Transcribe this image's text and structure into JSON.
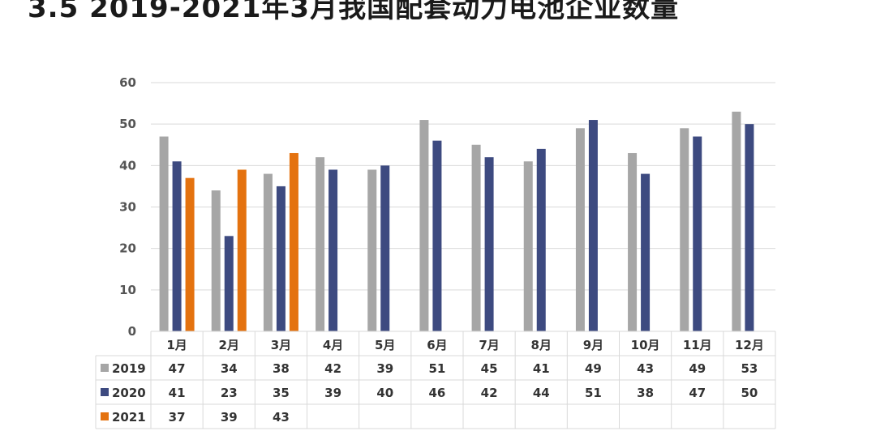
{
  "title": "3.5 2019-2021年3月我国配套动力电池企业数量",
  "chart_data": {
    "type": "bar",
    "title": "3.5 2019-2021年3月我国配套动力电池企业数量",
    "categories": [
      "1月",
      "2月",
      "3月",
      "4月",
      "5月",
      "6月",
      "7月",
      "8月",
      "9月",
      "10月",
      "11月",
      "12月"
    ],
    "series": [
      {
        "name": "2019",
        "color": "#a6a6a6",
        "values": [
          47,
          34,
          38,
          42,
          39,
          51,
          45,
          41,
          49,
          43,
          49,
          53
        ]
      },
      {
        "name": "2020",
        "color": "#3d4a80",
        "values": [
          41,
          23,
          35,
          39,
          40,
          46,
          42,
          44,
          51,
          38,
          47,
          50
        ]
      },
      {
        "name": "2021",
        "color": "#e4720f",
        "values": [
          37,
          39,
          43,
          null,
          null,
          null,
          null,
          null,
          null,
          null,
          null,
          null
        ]
      }
    ],
    "y_ticks": [
      "0",
      "10",
      "20",
      "30",
      "40",
      "50",
      "60"
    ],
    "ylim": [
      0,
      60
    ],
    "grid": true,
    "legend": "data-table"
  }
}
